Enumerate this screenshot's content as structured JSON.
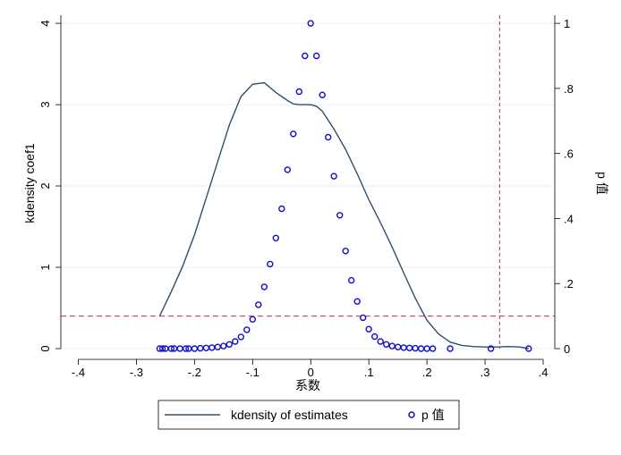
{
  "chart_data": {
    "type": "line+scatter",
    "xlabel": "系数",
    "ylabel_left": "kdensity coef1",
    "ylabel_right": "p 值",
    "xlim": [
      -0.43,
      0.42
    ],
    "ylim_left": [
      0,
      4.1
    ],
    "ylim_right": [
      0,
      1.025
    ],
    "x_ticks": [
      -0.4,
      -0.3,
      -0.2,
      -0.1,
      0,
      0.1,
      0.2,
      0.3,
      0.4
    ],
    "x_tick_labels": [
      "-.4",
      "-.3",
      "-.2",
      "-.1",
      "0",
      ".1",
      ".2",
      ".3",
      ".4"
    ],
    "y_left_ticks": [
      0,
      1,
      2,
      3,
      4
    ],
    "y_left_tick_labels": [
      "0",
      "1",
      "2",
      "3",
      "4"
    ],
    "y_right_ticks": [
      0,
      0.2,
      0.4,
      0.6,
      0.8,
      1
    ],
    "y_right_tick_labels": [
      "0",
      ".2",
      ".4",
      ".6",
      ".8",
      "1"
    ],
    "grid": true,
    "reference_lines": {
      "vertical_x": 0.325,
      "horizontal_p": 0.1,
      "color": "#b03060"
    },
    "series": [
      {
        "name": "kdensity of estimates",
        "kind": "line",
        "axis": "left",
        "color": "#2f4f6f",
        "points": [
          [
            -0.26,
            0.4
          ],
          [
            -0.24,
            0.7
          ],
          [
            -0.22,
            1.02
          ],
          [
            -0.2,
            1.4
          ],
          [
            -0.18,
            1.85
          ],
          [
            -0.16,
            2.3
          ],
          [
            -0.14,
            2.75
          ],
          [
            -0.12,
            3.1
          ],
          [
            -0.1,
            3.25
          ],
          [
            -0.08,
            3.27
          ],
          [
            -0.06,
            3.15
          ],
          [
            -0.04,
            3.05
          ],
          [
            -0.03,
            3.01
          ],
          [
            -0.02,
            3.0
          ],
          [
            0.0,
            3.0
          ],
          [
            0.01,
            2.98
          ],
          [
            0.02,
            2.92
          ],
          [
            0.04,
            2.7
          ],
          [
            0.06,
            2.45
          ],
          [
            0.08,
            2.15
          ],
          [
            0.1,
            1.83
          ],
          [
            0.12,
            1.55
          ],
          [
            0.14,
            1.25
          ],
          [
            0.16,
            0.93
          ],
          [
            0.18,
            0.62
          ],
          [
            0.2,
            0.35
          ],
          [
            0.22,
            0.18
          ],
          [
            0.24,
            0.08
          ],
          [
            0.26,
            0.04
          ],
          [
            0.28,
            0.025
          ],
          [
            0.3,
            0.02
          ],
          [
            0.32,
            0.02
          ],
          [
            0.34,
            0.025
          ],
          [
            0.36,
            0.02
          ],
          [
            0.375,
            0.0
          ]
        ]
      },
      {
        "name": "p 值",
        "kind": "scatter",
        "axis": "right",
        "color": "#1010cc",
        "marker": "hollow-circle",
        "points": [
          [
            -0.26,
            0.0
          ],
          [
            -0.255,
            0.0
          ],
          [
            -0.25,
            0.0
          ],
          [
            -0.24,
            0.0
          ],
          [
            -0.235,
            0.0
          ],
          [
            -0.225,
            0.0
          ],
          [
            -0.215,
            0.0
          ],
          [
            -0.21,
            0.0
          ],
          [
            -0.2,
            0.0
          ],
          [
            -0.19,
            0.001
          ],
          [
            -0.18,
            0.002
          ],
          [
            -0.17,
            0.003
          ],
          [
            -0.16,
            0.005
          ],
          [
            -0.15,
            0.008
          ],
          [
            -0.14,
            0.013
          ],
          [
            -0.13,
            0.022
          ],
          [
            -0.12,
            0.036
          ],
          [
            -0.11,
            0.058
          ],
          [
            -0.1,
            0.09
          ],
          [
            -0.09,
            0.135
          ],
          [
            -0.08,
            0.19
          ],
          [
            -0.07,
            0.26
          ],
          [
            -0.06,
            0.34
          ],
          [
            -0.05,
            0.43
          ],
          [
            -0.04,
            0.55
          ],
          [
            -0.03,
            0.66
          ],
          [
            -0.02,
            0.79
          ],
          [
            -0.01,
            0.9
          ],
          [
            0.0,
            1.0
          ],
          [
            0.01,
            0.9
          ],
          [
            0.02,
            0.78
          ],
          [
            0.03,
            0.65
          ],
          [
            0.04,
            0.53
          ],
          [
            0.05,
            0.41
          ],
          [
            0.06,
            0.3
          ],
          [
            0.07,
            0.21
          ],
          [
            0.08,
            0.145
          ],
          [
            0.09,
            0.095
          ],
          [
            0.1,
            0.06
          ],
          [
            0.11,
            0.037
          ],
          [
            0.12,
            0.022
          ],
          [
            0.13,
            0.013
          ],
          [
            0.14,
            0.008
          ],
          [
            0.15,
            0.005
          ],
          [
            0.16,
            0.003
          ],
          [
            0.17,
            0.002
          ],
          [
            0.18,
            0.001
          ],
          [
            0.19,
            0.0
          ],
          [
            0.2,
            0.0
          ],
          [
            0.21,
            0.0
          ],
          [
            0.24,
            0.0
          ],
          [
            0.31,
            0.0
          ],
          [
            0.375,
            0.0
          ]
        ]
      }
    ],
    "legend": {
      "placement": "bottom",
      "entries": [
        {
          "label": "kdensity of estimates",
          "marker": "line"
        },
        {
          "label": "p 值",
          "marker": "hollow-circle"
        }
      ]
    }
  }
}
